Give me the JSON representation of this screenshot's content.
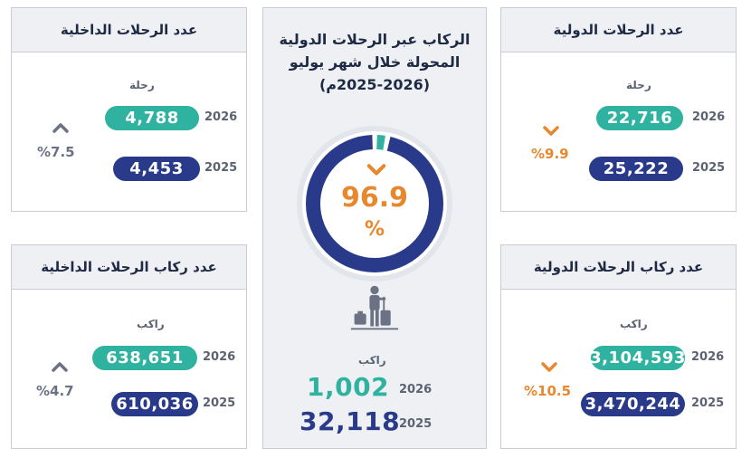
{
  "center": {
    "title_line1": "الركاب عبر الرحلات الدولية",
    "title_line2": "المحولة خلال شهر يوليو",
    "title_line3": "(2025-2026م)",
    "percent_value": "96.9",
    "percent_sign": "%",
    "percent_fraction": 0.969,
    "unit": "راكب",
    "year_2026": "2026",
    "value_2026": "1,002",
    "year_2025": "2025",
    "value_2025": "32,118",
    "trend": "down"
  },
  "cards": {
    "domestic_flights": {
      "title": "عدد الرحلات الداخلية",
      "unit": "رحلة",
      "year_2026": "2026",
      "value_2026": "4,788",
      "year_2025": "2025",
      "value_2025": "4,453",
      "change": "%7.5",
      "trend": "up"
    },
    "international_flights": {
      "title": "عدد الرحلات الدولية",
      "unit": "رحلة",
      "year_2026": "2026",
      "value_2026": "22,716",
      "year_2025": "2025",
      "value_2025": "25,222",
      "change": "%9.9",
      "trend": "down"
    },
    "domestic_passengers": {
      "title": "عدد ركاب الرحلات الداخلية",
      "unit": "راكب",
      "year_2026": "2026",
      "value_2026": "638,651",
      "year_2025": "2025",
      "value_2025": "610,036",
      "change": "%4.7",
      "trend": "up"
    },
    "international_passengers": {
      "title": "عدد ركاب الرحلات الدولية",
      "unit": "راكب",
      "year_2026": "2026",
      "value_2026": "3,104,593",
      "year_2025": "2025",
      "value_2025": "3,470,244",
      "change": "%10.5",
      "trend": "down"
    }
  },
  "colors": {
    "teal": "#2fb3a0",
    "navy": "#293a8a",
    "orange": "#e8882e",
    "gray": "#6b7283"
  },
  "icons": [
    "chevron-up-icon",
    "chevron-down-icon",
    "traveler-with-luggage-icon"
  ]
}
